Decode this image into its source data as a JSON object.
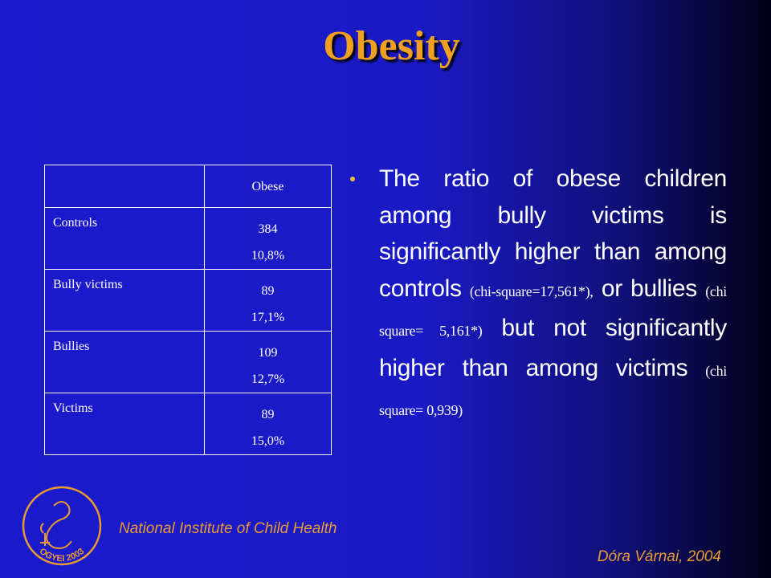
{
  "title": "Obesity",
  "table": {
    "header": [
      "",
      "Obese"
    ],
    "rows": [
      [
        "Controls",
        "384",
        "10,8%"
      ],
      [
        "Bully victims",
        "89",
        "17,1%"
      ],
      [
        "Bullies",
        "109",
        "12,7%"
      ],
      [
        "Victims",
        "89",
        "15,0%"
      ]
    ]
  },
  "bullet": {
    "runs": [
      "The ratio of obese children among bully victims is significantly higher than among controls",
      "(chi-square=17,561*),",
      "or bullies",
      "(chi square= 5,161*)",
      "but not significantly higher than among victims",
      "(chi square= 0,939)"
    ]
  },
  "logo": {
    "text": "OGYEI 2003"
  },
  "footer": {
    "institute": "National Institute of Child Health",
    "author": "Dóra Várnai, 2004"
  }
}
